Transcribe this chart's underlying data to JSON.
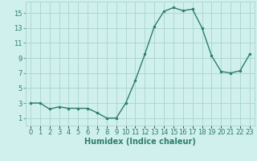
{
  "x": [
    0,
    1,
    2,
    3,
    4,
    5,
    6,
    7,
    8,
    9,
    10,
    11,
    12,
    13,
    14,
    15,
    16,
    17,
    18,
    19,
    20,
    21,
    22,
    23
  ],
  "y": [
    3.0,
    3.0,
    2.2,
    2.5,
    2.3,
    2.3,
    2.3,
    1.7,
    1.0,
    1.0,
    3.0,
    6.0,
    9.5,
    13.2,
    15.2,
    15.7,
    15.3,
    15.5,
    13.0,
    9.3,
    7.2,
    7.0,
    7.3,
    9.5
  ],
  "line_color": "#2e7d6e",
  "marker_color": "#2e7d6e",
  "bg_color": "#cff0ec",
  "grid_color": "#aad4ce",
  "xlabel": "Humidex (Indice chaleur)",
  "xlim": [
    -0.5,
    23.5
  ],
  "ylim": [
    0,
    16.5
  ],
  "yticks": [
    1,
    3,
    5,
    7,
    9,
    11,
    13,
    15
  ],
  "xtick_positions": [
    0,
    1,
    2,
    3,
    4,
    5,
    6,
    7,
    8,
    9,
    10,
    11,
    12,
    13,
    14,
    15,
    16,
    17,
    18,
    19,
    20,
    21,
    22,
    23
  ],
  "xtick_labels": [
    "0",
    "1",
    "2",
    "3",
    "4",
    "5",
    "6",
    "7",
    "8",
    "9",
    "10",
    "11",
    "12",
    "13",
    "14",
    "15",
    "16",
    "17",
    "18",
    "19",
    "20",
    "21",
    "22",
    "23"
  ],
  "font_color": "#2e7d6e",
  "tick_fontsize": 6,
  "xlabel_fontsize": 7
}
